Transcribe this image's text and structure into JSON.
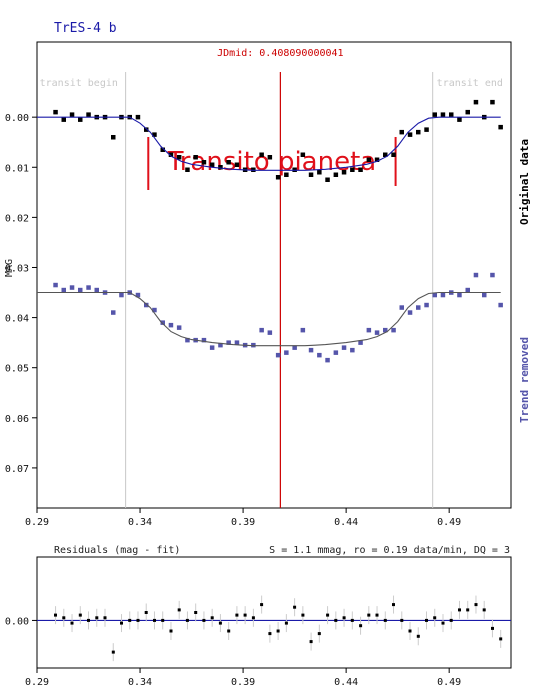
{
  "title": "TrES-4 b",
  "jdmid_label": "JDmid: 0.408090000041",
  "transit_begin_label": "transit begin",
  "transit_end_label": "transit end",
  "annotation": "Transito pianeta",
  "ylabel": "MAG",
  "side_original": "Original data",
  "side_trend": "Trend removed",
  "residuals_title": "Residuals (mag - fit)",
  "residuals_stats": "S = 1.1 mmag, ro = 0.19 data/min, DQ = 3",
  "colors": {
    "title": "#1a1aa8",
    "original_points": "#000000",
    "original_fit": "#1a1aa8",
    "trend_points": "#5555aa",
    "trend_fit": "#555555",
    "jdmid_line": "#cc0000",
    "annotation": "#e0101a",
    "transit_lines": "#c8c8c8",
    "residual_zero": "#1a1aa8"
  },
  "chart_data": [
    {
      "type": "scatter",
      "panel": "main",
      "xlim": [
        0.29,
        0.52
      ],
      "ylim": [
        -0.015,
        0.078
      ],
      "y_reversed": true,
      "x_ticks": [
        "0.29",
        "0.34",
        "0.39",
        "0.44",
        "0.49"
      ],
      "y_ticks": [
        "0.00",
        "0.01",
        "0.02",
        "0.03",
        "0.04",
        "0.05",
        "0.06",
        "0.07"
      ],
      "transit_begin": 0.333,
      "transit_end": 0.482,
      "jdmid": 0.40809,
      "annotation_range": [
        0.344,
        0.464
      ],
      "series": [
        {
          "name": "Original data",
          "x": [
            0.299,
            0.303,
            0.307,
            0.311,
            0.315,
            0.319,
            0.323,
            0.327,
            0.331,
            0.335,
            0.339,
            0.343,
            0.347,
            0.351,
            0.355,
            0.359,
            0.363,
            0.367,
            0.371,
            0.375,
            0.379,
            0.383,
            0.387,
            0.391,
            0.395,
            0.399,
            0.403,
            0.407,
            0.411,
            0.415,
            0.419,
            0.423,
            0.427,
            0.431,
            0.435,
            0.439,
            0.443,
            0.447,
            0.451,
            0.455,
            0.459,
            0.463,
            0.467,
            0.471,
            0.475,
            0.479,
            0.483,
            0.487,
            0.491,
            0.495,
            0.499,
            0.503,
            0.507,
            0.511,
            0.515
          ],
          "y": [
            -0.001,
            0.0005,
            -0.0005,
            0.0005,
            -0.0005,
            0.0,
            0.0,
            0.004,
            0.0,
            0.0,
            0.0,
            0.0025,
            0.0035,
            0.0065,
            0.0075,
            0.008,
            0.0105,
            0.008,
            0.009,
            0.0095,
            0.01,
            0.009,
            0.0095,
            0.0105,
            0.0105,
            0.0075,
            0.008,
            0.012,
            0.0115,
            0.0105,
            0.0075,
            0.0115,
            0.011,
            0.0125,
            0.0115,
            0.011,
            0.0105,
            0.0105,
            0.0085,
            0.0085,
            0.0075,
            0.0075,
            0.003,
            0.0035,
            0.003,
            0.0025,
            -0.0005,
            -0.0005,
            -0.0005,
            0.0005,
            -0.001,
            -0.003,
            0.0,
            -0.003,
            0.002
          ]
        },
        {
          "name": "Original data fit",
          "x": [
            0.29,
            0.335,
            0.34,
            0.345,
            0.35,
            0.355,
            0.36,
            0.365,
            0.37,
            0.375,
            0.38,
            0.385,
            0.39,
            0.395,
            0.4,
            0.405,
            0.41,
            0.415,
            0.42,
            0.425,
            0.43,
            0.435,
            0.44,
            0.445,
            0.45,
            0.455,
            0.46,
            0.465,
            0.47,
            0.475,
            0.48,
            0.485,
            0.515
          ],
          "y": [
            0.0,
            0.0,
            0.0012,
            0.003,
            0.0058,
            0.0078,
            0.0088,
            0.0094,
            0.0097,
            0.01,
            0.0102,
            0.0104,
            0.0105,
            0.0106,
            0.0106,
            0.0106,
            0.0106,
            0.0106,
            0.0106,
            0.0105,
            0.0104,
            0.0102,
            0.01,
            0.0097,
            0.0094,
            0.0088,
            0.0078,
            0.0058,
            0.003,
            0.0012,
            0.0002,
            0.0,
            0.0
          ]
        },
        {
          "name": "Trend removed",
          "x": [
            0.299,
            0.303,
            0.307,
            0.311,
            0.315,
            0.319,
            0.323,
            0.327,
            0.331,
            0.335,
            0.339,
            0.343,
            0.347,
            0.351,
            0.355,
            0.359,
            0.363,
            0.367,
            0.371,
            0.375,
            0.379,
            0.383,
            0.387,
            0.391,
            0.395,
            0.399,
            0.403,
            0.407,
            0.411,
            0.415,
            0.419,
            0.423,
            0.427,
            0.431,
            0.435,
            0.439,
            0.443,
            0.447,
            0.451,
            0.455,
            0.459,
            0.463,
            0.467,
            0.471,
            0.475,
            0.479,
            0.483,
            0.487,
            0.491,
            0.495,
            0.499,
            0.503,
            0.507,
            0.511,
            0.515
          ],
          "y": [
            0.0335,
            0.0345,
            0.034,
            0.0345,
            0.034,
            0.0345,
            0.035,
            0.039,
            0.0355,
            0.035,
            0.0355,
            0.0375,
            0.0385,
            0.041,
            0.0415,
            0.042,
            0.0445,
            0.0445,
            0.0445,
            0.046,
            0.0455,
            0.045,
            0.045,
            0.0455,
            0.0455,
            0.0425,
            0.043,
            0.0475,
            0.047,
            0.046,
            0.0425,
            0.0465,
            0.0475,
            0.0485,
            0.047,
            0.046,
            0.0465,
            0.045,
            0.0425,
            0.043,
            0.0425,
            0.0425,
            0.038,
            0.039,
            0.038,
            0.0375,
            0.0355,
            0.0355,
            0.035,
            0.0355,
            0.0345,
            0.0315,
            0.0355,
            0.0315,
            0.0375
          ]
        },
        {
          "name": "Trend removed fit",
          "x": [
            0.29,
            0.335,
            0.34,
            0.345,
            0.35,
            0.355,
            0.36,
            0.365,
            0.37,
            0.375,
            0.38,
            0.385,
            0.39,
            0.395,
            0.4,
            0.405,
            0.41,
            0.415,
            0.42,
            0.425,
            0.43,
            0.435,
            0.44,
            0.445,
            0.45,
            0.455,
            0.46,
            0.465,
            0.47,
            0.475,
            0.48,
            0.485,
            0.515
          ],
          "y": [
            0.035,
            0.035,
            0.0362,
            0.038,
            0.0408,
            0.0428,
            0.0438,
            0.0444,
            0.0447,
            0.045,
            0.0452,
            0.0454,
            0.0455,
            0.0456,
            0.0456,
            0.0456,
            0.0456,
            0.0456,
            0.0456,
            0.0455,
            0.0454,
            0.0452,
            0.045,
            0.0447,
            0.0444,
            0.0438,
            0.0428,
            0.0408,
            0.038,
            0.0362,
            0.0352,
            0.035,
            0.035
          ]
        }
      ]
    },
    {
      "type": "scatter",
      "panel": "residuals",
      "xlim": [
        0.29,
        0.52
      ],
      "ylim": [
        -0.012,
        0.009
      ],
      "y_reversed": true,
      "x_ticks": [
        "0.29",
        "0.34",
        "0.39",
        "0.44",
        "0.49"
      ],
      "y_ticks": [
        "0.00"
      ],
      "series": [
        {
          "name": "Residuals",
          "x": [
            0.299,
            0.303,
            0.307,
            0.311,
            0.315,
            0.319,
            0.323,
            0.327,
            0.331,
            0.335,
            0.339,
            0.343,
            0.347,
            0.351,
            0.355,
            0.359,
            0.363,
            0.367,
            0.371,
            0.375,
            0.379,
            0.383,
            0.387,
            0.391,
            0.395,
            0.399,
            0.403,
            0.407,
            0.411,
            0.415,
            0.419,
            0.423,
            0.427,
            0.431,
            0.435,
            0.439,
            0.443,
            0.447,
            0.451,
            0.455,
            0.459,
            0.463,
            0.467,
            0.471,
            0.475,
            0.479,
            0.483,
            0.487,
            0.491,
            0.495,
            0.499,
            0.503,
            0.507,
            0.511,
            0.515
          ],
          "y": [
            -0.001,
            -0.0005,
            0.0005,
            -0.001,
            0.0,
            -0.0005,
            -0.0005,
            0.006,
            0.0005,
            0.0,
            0.0,
            -0.0015,
            0.0,
            0.0,
            0.002,
            -0.002,
            0.0,
            -0.0015,
            0.0,
            -0.0005,
            0.0005,
            0.002,
            -0.001,
            -0.001,
            -0.0005,
            -0.003,
            0.0025,
            0.002,
            0.0005,
            -0.0025,
            -0.001,
            0.004,
            0.0025,
            -0.001,
            0.0,
            -0.0005,
            0.0,
            0.001,
            -0.001,
            -0.001,
            0.0,
            -0.003,
            0.0,
            0.002,
            0.003,
            0.0,
            -0.0005,
            0.0005,
            0.0,
            -0.002,
            -0.002,
            -0.003,
            -0.002,
            0.0015,
            0.0035
          ]
        }
      ]
    }
  ]
}
